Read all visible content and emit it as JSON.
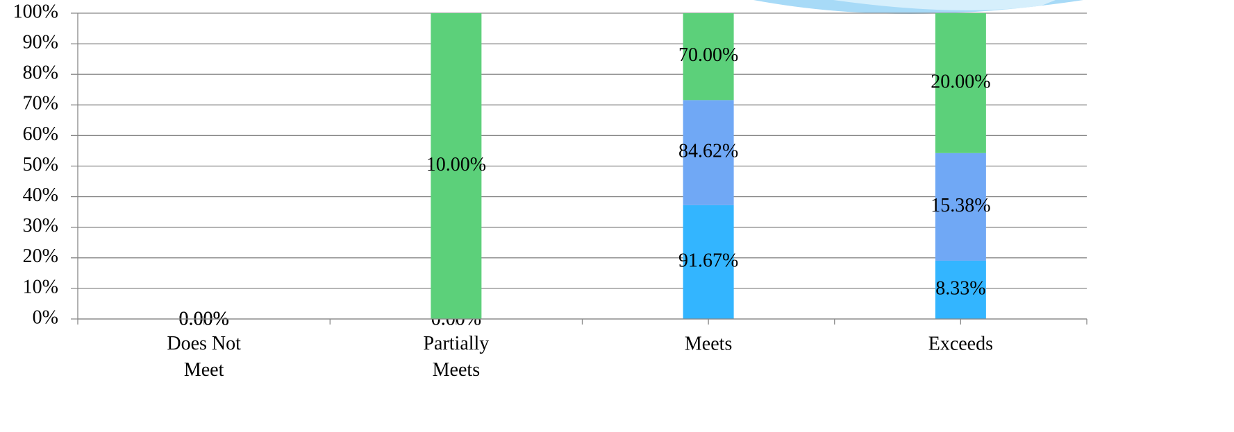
{
  "chart_data": {
    "type": "bar",
    "stacking": "percent",
    "categories": [
      "Does Not Meet",
      "Partially Meets",
      "Meets",
      "Exceeds"
    ],
    "series": [
      {
        "color": "#33b5ff",
        "values": [
          0,
          0,
          91.67,
          8.33
        ],
        "value_labels": [
          "0.00%",
          "0.00%",
          "91.67%",
          "8.33%"
        ]
      },
      {
        "color": "#70a8f5",
        "values": [
          0,
          0,
          84.62,
          15.38
        ],
        "value_labels": [
          "0.00%",
          "0.00%",
          "84.62%",
          "15.38%"
        ]
      },
      {
        "color": "#5cd07a",
        "values": [
          0,
          10,
          70,
          20
        ],
        "value_labels": [
          "0.00%",
          "10.00%",
          "70.00%",
          "20.00%"
        ]
      }
    ],
    "ylim": [
      0,
      100
    ],
    "yticks": [
      {
        "value": 0,
        "label": "0%"
      },
      {
        "value": 10,
        "label": "10%"
      },
      {
        "value": 20,
        "label": "20%"
      },
      {
        "value": 30,
        "label": "30%"
      },
      {
        "value": 40,
        "label": "40%"
      },
      {
        "value": 50,
        "label": "50%"
      },
      {
        "value": 60,
        "label": "60%"
      },
      {
        "value": 70,
        "label": "70%"
      },
      {
        "value": 80,
        "label": "80%"
      },
      {
        "value": 90,
        "label": "90%"
      },
      {
        "value": 100,
        "label": "100%"
      }
    ],
    "grid": true
  }
}
